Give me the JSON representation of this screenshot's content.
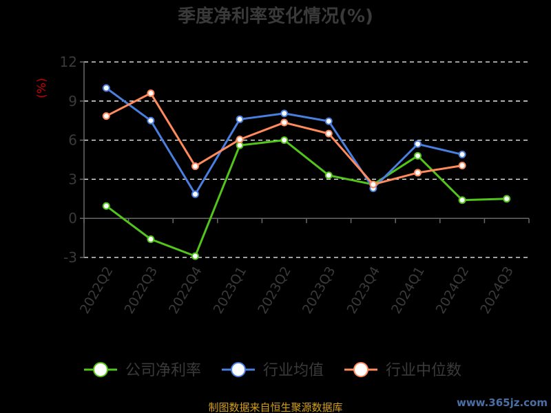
{
  "chart_data": {
    "type": "line",
    "title": "季度净利率变化情况(%)",
    "ylabel": "(%)",
    "categories": [
      "2022Q2",
      "2022Q3",
      "2022Q4",
      "2023Q1",
      "2023Q2",
      "2023Q3",
      "2023Q4",
      "2024Q1",
      "2024Q2",
      "2024Q3"
    ],
    "yticks": [
      "12",
      "9",
      "6",
      "3",
      "0",
      "-3"
    ],
    "ylim": [
      -3,
      12
    ],
    "grid": true,
    "legend_position": "bottom",
    "series": [
      {
        "name": "公司净利率",
        "color": "#52c41a",
        "values": [
          0.95,
          -1.6,
          -2.9,
          5.6,
          6.0,
          3.3,
          2.6,
          4.8,
          1.4,
          1.5
        ]
      },
      {
        "name": "行业均值",
        "color": "#4a7fe0",
        "values": [
          10.0,
          7.5,
          1.85,
          7.6,
          8.05,
          7.45,
          2.3,
          5.7,
          4.9,
          null
        ]
      },
      {
        "name": "行业中位数",
        "color": "#ff8a5c",
        "values": [
          7.85,
          9.6,
          4.0,
          6.05,
          7.35,
          6.5,
          2.6,
          3.5,
          4.05,
          null
        ]
      }
    ]
  },
  "footer": {
    "source": "制图数据来自恒生聚源数据库",
    "watermark": "www.365jz.com"
  }
}
